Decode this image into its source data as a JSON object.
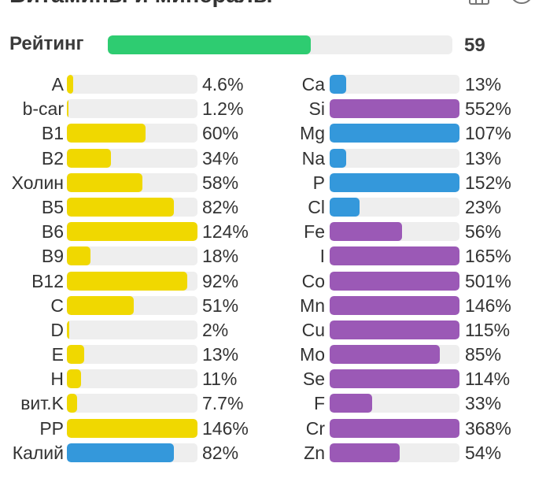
{
  "header": {
    "title": "Витамины и минералы"
  },
  "rating": {
    "label": "Рейтинг",
    "value": "59",
    "percent": 59,
    "color": "#2ecc71"
  },
  "colors": {
    "vitamin": "#f0d800",
    "mineral_blue": "#3498db",
    "mineral_purple": "#9b59b6",
    "track": "#eeeeee"
  },
  "vitamins": [
    {
      "label": "A",
      "pct": "4.6%",
      "value": 4.6,
      "color": "#f0d800"
    },
    {
      "label": "b-car",
      "pct": "1.2%",
      "value": 1.2,
      "color": "#f0d800"
    },
    {
      "label": "B1",
      "pct": "60%",
      "value": 60,
      "color": "#f0d800"
    },
    {
      "label": "B2",
      "pct": "34%",
      "value": 34,
      "color": "#f0d800"
    },
    {
      "label": "Холин",
      "pct": "58%",
      "value": 58,
      "color": "#f0d800"
    },
    {
      "label": "B5",
      "pct": "82%",
      "value": 82,
      "color": "#f0d800"
    },
    {
      "label": "B6",
      "pct": "124%",
      "value": 124,
      "color": "#f0d800"
    },
    {
      "label": "B9",
      "pct": "18%",
      "value": 18,
      "color": "#f0d800"
    },
    {
      "label": "B12",
      "pct": "92%",
      "value": 92,
      "color": "#f0d800"
    },
    {
      "label": "C",
      "pct": "51%",
      "value": 51,
      "color": "#f0d800"
    },
    {
      "label": "D",
      "pct": "2%",
      "value": 2,
      "color": "#f0d800"
    },
    {
      "label": "E",
      "pct": "13%",
      "value": 13,
      "color": "#f0d800"
    },
    {
      "label": "H",
      "pct": "11%",
      "value": 11,
      "color": "#f0d800"
    },
    {
      "label": "вит.K",
      "pct": "7.7%",
      "value": 7.7,
      "color": "#f0d800"
    },
    {
      "label": "PP",
      "pct": "146%",
      "value": 146,
      "color": "#f0d800"
    },
    {
      "label": "Калий",
      "pct": "82%",
      "value": 82,
      "color": "#3498db"
    }
  ],
  "minerals": [
    {
      "label": "Ca",
      "pct": "13%",
      "value": 13,
      "color": "#3498db"
    },
    {
      "label": "Si",
      "pct": "552%",
      "value": 552,
      "color": "#9b59b6"
    },
    {
      "label": "Mg",
      "pct": "107%",
      "value": 107,
      "color": "#3498db"
    },
    {
      "label": "Na",
      "pct": "13%",
      "value": 13,
      "color": "#3498db"
    },
    {
      "label": "P",
      "pct": "152%",
      "value": 152,
      "color": "#3498db"
    },
    {
      "label": "Cl",
      "pct": "23%",
      "value": 23,
      "color": "#3498db"
    },
    {
      "label": "Fe",
      "pct": "56%",
      "value": 56,
      "color": "#9b59b6"
    },
    {
      "label": "I",
      "pct": "165%",
      "value": 165,
      "color": "#9b59b6"
    },
    {
      "label": "Co",
      "pct": "501%",
      "value": 501,
      "color": "#9b59b6"
    },
    {
      "label": "Mn",
      "pct": "146%",
      "value": 146,
      "color": "#9b59b6"
    },
    {
      "label": "Cu",
      "pct": "115%",
      "value": 115,
      "color": "#9b59b6"
    },
    {
      "label": "Mo",
      "pct": "85%",
      "value": 85,
      "color": "#9b59b6"
    },
    {
      "label": "Se",
      "pct": "114%",
      "value": 114,
      "color": "#9b59b6"
    },
    {
      "label": "F",
      "pct": "33%",
      "value": 33,
      "color": "#9b59b6"
    },
    {
      "label": "Cr",
      "pct": "368%",
      "value": 368,
      "color": "#9b59b6"
    },
    {
      "label": "Zn",
      "pct": "54%",
      "value": 54,
      "color": "#9b59b6"
    }
  ]
}
